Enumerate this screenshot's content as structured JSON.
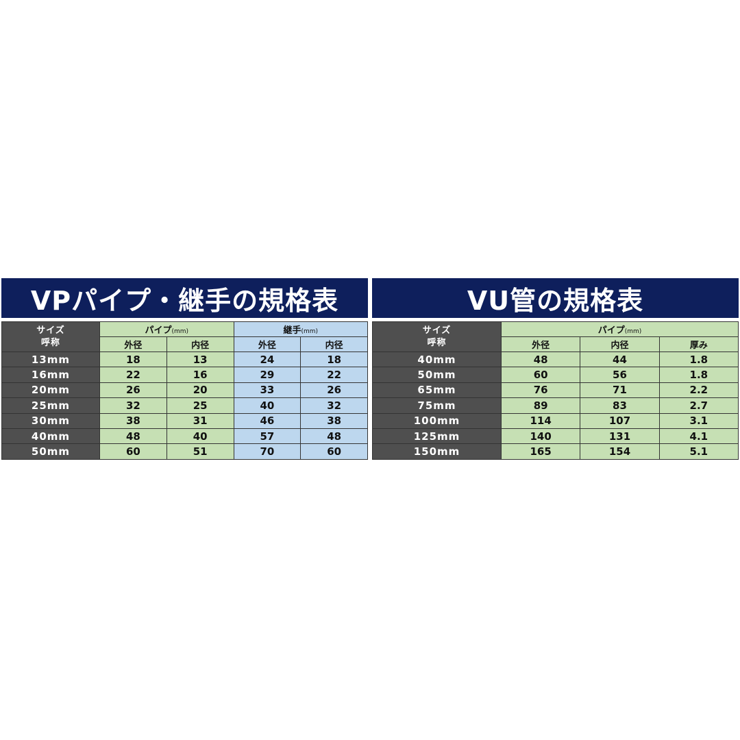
{
  "vp": {
    "title": "VPパイプ・継手の規格表",
    "size_header_1": "サイズ",
    "size_header_2": "呼称",
    "pipe_group": "パイプ",
    "joint_group": "継手",
    "unit": "(mm)",
    "columns": [
      "外径",
      "内径",
      "外径",
      "内径"
    ],
    "rows": [
      [
        "13mm",
        "18",
        "13",
        "24",
        "18"
      ],
      [
        "16mm",
        "22",
        "16",
        "29",
        "22"
      ],
      [
        "20mm",
        "26",
        "20",
        "33",
        "26"
      ],
      [
        "25mm",
        "32",
        "25",
        "40",
        "32"
      ],
      [
        "30mm",
        "38",
        "31",
        "46",
        "38"
      ],
      [
        "40mm",
        "48",
        "40",
        "57",
        "48"
      ],
      [
        "50mm",
        "60",
        "51",
        "70",
        "60"
      ]
    ]
  },
  "vu": {
    "title": "VU管の規格表",
    "size_header_1": "サイズ",
    "size_header_2": "呼称",
    "pipe_group": "パイプ",
    "unit": "(mm)",
    "columns": [
      "外径",
      "内径",
      "厚み"
    ],
    "rows": [
      [
        "40mm",
        "48",
        "44",
        "1.8"
      ],
      [
        "50mm",
        "60",
        "56",
        "1.8"
      ],
      [
        "65mm",
        "76",
        "71",
        "2.2"
      ],
      [
        "75mm",
        "89",
        "83",
        "2.7"
      ],
      [
        "100mm",
        "114",
        "107",
        "3.1"
      ],
      [
        "125mm",
        "140",
        "131",
        "4.1"
      ],
      [
        "150mm",
        "165",
        "154",
        "5.1"
      ]
    ]
  },
  "colors": {
    "banner": "#0e1f5c",
    "size_column": "#4f4f4f",
    "pipe": "#c6e0b4",
    "joint": "#bdd7ee"
  }
}
